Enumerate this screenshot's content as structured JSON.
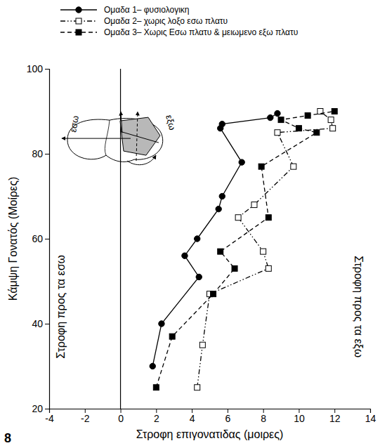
{
  "chart_data": {
    "type": "line",
    "x_label": "Στροφη επιγονατιδας (μοιρες)",
    "y_label": "Κάμψη Γονατός (Μοίρες)",
    "panel_label": "8",
    "annotations": {
      "inward": "Στροφη προς τα εσω",
      "outward": "Στροφη προς τα εξω",
      "inset_inward": "εσω",
      "inset_outward": "εξω"
    },
    "xlim": [
      -4,
      14
    ],
    "ylim": [
      20,
      100
    ],
    "xticks": [
      -4,
      -2,
      0,
      2,
      4,
      6,
      8,
      10,
      12,
      14
    ],
    "yticks": [
      20,
      40,
      60,
      80,
      100
    ],
    "vlines": [
      0
    ],
    "legend": "top",
    "series": [
      {
        "name": "Ομαδα 1– φυσιολογικη",
        "color": "#000000",
        "marker": "circle",
        "line_style": "solid",
        "x": [
          1.8,
          2.3,
          4.4,
          3.6,
          4.3,
          5.5,
          5.7,
          6.8,
          5.6,
          5.7,
          8.4,
          8.8
        ],
        "values": [
          30,
          40,
          51,
          56,
          60,
          67,
          70,
          78,
          86,
          87,
          88.5,
          89.5
        ]
      },
      {
        "name": "Ομαδα 2– χωρις λοξο εσω πλατυ",
        "color": "#000000",
        "marker": "square-open",
        "line_style": "dash-dot",
        "x": [
          4.3,
          4.6,
          5.0,
          8.3,
          8.0,
          6.6,
          7.5,
          9.7,
          8.8,
          11.9,
          11.8,
          11.2
        ],
        "values": [
          25,
          35,
          47,
          53,
          57,
          65,
          68,
          77,
          85,
          86,
          88,
          90
        ]
      },
      {
        "name": "Ομαδα 3– Χωρις Εσω πλατυ & μειωμενο εξω πλατυ",
        "color": "#000000",
        "marker": "square",
        "line_style": "dashed",
        "x": [
          2.0,
          2.9,
          5.2,
          6.4,
          5.6,
          8.3,
          7.9,
          11.0,
          10.0,
          9.0,
          10.5,
          12.0
        ],
        "values": [
          25,
          37,
          47,
          53,
          57,
          65,
          77,
          85,
          86,
          88,
          89,
          90
        ]
      }
    ]
  }
}
